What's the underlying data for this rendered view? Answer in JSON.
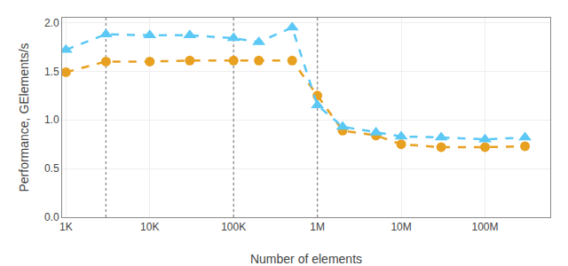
{
  "chart_data": {
    "type": "line",
    "xlabel": "Number of elements",
    "ylabel": "Performance, GElements/s",
    "log": "x",
    "grid": true,
    "xlim": [
      900,
      600000000
    ],
    "ylim": [
      0.0,
      2.05
    ],
    "xticks": [
      {
        "value": 1000,
        "label": "1K"
      },
      {
        "value": 10000,
        "label": "10K"
      },
      {
        "value": 100000,
        "label": "100K"
      },
      {
        "value": 1000000,
        "label": "1M"
      },
      {
        "value": 10000000,
        "label": "10M"
      },
      {
        "value": 100000000,
        "label": "100M"
      }
    ],
    "yticks": [
      {
        "value": 0.0,
        "label": "0.0"
      },
      0.5,
      {
        "value": 1.0,
        "label": "1.0"
      },
      1.5,
      {
        "value": 2.0,
        "label": "2.0"
      }
    ],
    "vlines": [
      3000,
      100000,
      1000000
    ],
    "x": [
      1000,
      3000,
      10000,
      30000,
      100000,
      200000,
      500000,
      1000000,
      2000000,
      5000000,
      10000000,
      30000000,
      100000000,
      300000000
    ],
    "series": [
      {
        "color": "#5BC8F5",
        "marker": "triangle-up",
        "line_style": "dash",
        "values": [
          1.72,
          1.88,
          1.87,
          1.87,
          1.84,
          1.8,
          1.95,
          1.15,
          0.93,
          0.87,
          0.83,
          0.82,
          0.8,
          0.82
        ]
      },
      {
        "color": "#E8A020",
        "marker": "circle",
        "line_style": "dash",
        "values": [
          1.49,
          1.6,
          1.6,
          1.61,
          1.61,
          1.61,
          1.61,
          1.25,
          0.89,
          0.84,
          0.75,
          0.72,
          0.72,
          0.73
        ]
      }
    ]
  }
}
